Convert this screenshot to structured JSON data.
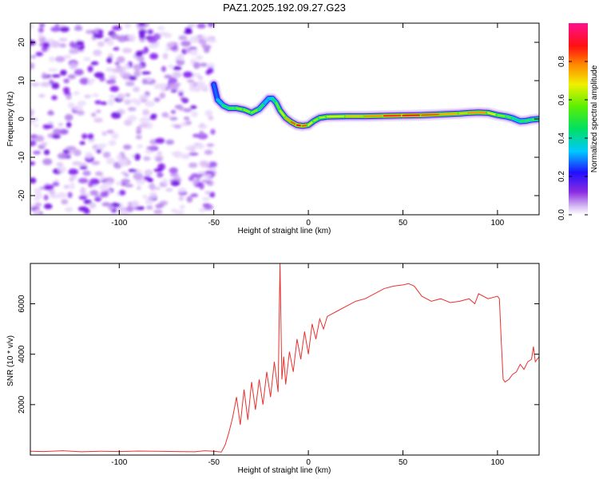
{
  "title": "PAZ1.2025.192.09.27.G23",
  "colors": {
    "trace": "#e8322f",
    "frame": "#000000",
    "colormap": [
      "#e8d6f7",
      "#7b10e8",
      "#1f10ff",
      "#00c8ff",
      "#00e85a",
      "#c8f000",
      "#ffe100",
      "#ff8000",
      "#ff1010",
      "#ff10a0"
    ]
  },
  "chart_data": [
    {
      "type": "heatmap",
      "xlabel": "Height of straight line (km)",
      "ylabel": "Frequency (Hz)",
      "xlim": [
        -147,
        122
      ],
      "ylim": [
        -25,
        25
      ],
      "x_ticks": [
        -100,
        -50,
        0,
        50,
        100
      ],
      "y_ticks": [
        -20,
        -10,
        0,
        10,
        20
      ],
      "grid": false,
      "noise_region_x": [
        -147,
        -50
      ],
      "ridge": {
        "x": [
          -50,
          -48,
          -45,
          -42,
          -38,
          -34,
          -30,
          -26,
          -23,
          -21,
          -19,
          -17,
          -15,
          -12,
          -9,
          -6,
          -3,
          0,
          3,
          6,
          10,
          20,
          30,
          40,
          50,
          60,
          70,
          80,
          85,
          90,
          95,
          100,
          105,
          108,
          110,
          112,
          115,
          118,
          122
        ],
        "y": [
          9,
          5,
          3.5,
          2.8,
          2.8,
          2.4,
          1.6,
          2.6,
          4.2,
          5.3,
          5.3,
          4.2,
          2.2,
          0.3,
          -0.8,
          -1.6,
          -1.8,
          -1.6,
          -0.5,
          0.3,
          0.6,
          0.7,
          0.7,
          0.8,
          0.9,
          1.0,
          1.2,
          1.4,
          1.6,
          1.7,
          1.6,
          1.0,
          0.6,
          0.2,
          -0.2,
          -0.6,
          -0.5,
          -0.2,
          0
        ],
        "amplitude": [
          0.25,
          0.3,
          0.45,
          0.5,
          0.55,
          0.6,
          0.6,
          0.55,
          0.4,
          0.35,
          0.4,
          0.5,
          0.6,
          0.7,
          0.8,
          0.85,
          0.9,
          0.75,
          0.6,
          0.6,
          0.65,
          0.7,
          0.75,
          0.8,
          0.9,
          0.85,
          0.8,
          0.7,
          0.75,
          0.8,
          0.75,
          0.6,
          0.55,
          0.5,
          0.45,
          0.45,
          0.5,
          0.5,
          0.5
        ]
      },
      "colorbar": {
        "label": "Normalized spectral amplitude",
        "range": [
          0,
          1
        ],
        "ticks": [
          0.0,
          0.2,
          0.4,
          0.6,
          0.8
        ]
      }
    },
    {
      "type": "line",
      "xlabel": "Height of straight line (km)",
      "ylabel": "SNR (10 * v/v)",
      "xlim": [
        -147,
        122
      ],
      "ylim": [
        0,
        7600
      ],
      "x_ticks": [
        -100,
        -50,
        0,
        50,
        100
      ],
      "y_ticks": [
        2000,
        4000,
        6000
      ],
      "grid": false,
      "series": [
        {
          "x": [
            -147,
            -140,
            -130,
            -120,
            -110,
            -100,
            -90,
            -80,
            -70,
            -60,
            -55,
            -50,
            -46,
            -44,
            -42,
            -40,
            -38,
            -36,
            -34,
            -32,
            -30,
            -28,
            -26,
            -24,
            -22,
            -20,
            -18,
            -16,
            -15,
            -14,
            -13,
            -12,
            -10,
            -8,
            -6,
            -4,
            -2,
            0,
            2,
            4,
            6,
            8,
            10,
            15,
            20,
            25,
            30,
            35,
            40,
            45,
            50,
            53,
            56,
            60,
            65,
            70,
            75,
            80,
            85,
            88,
            90,
            95,
            100,
            101,
            102,
            103,
            104,
            106,
            108,
            110,
            112,
            114,
            116,
            118,
            119,
            120,
            122
          ],
          "y": [
            150,
            140,
            170,
            130,
            150,
            140,
            160,
            150,
            140,
            130,
            170,
            150,
            120,
            400,
            900,
            1500,
            2300,
            1200,
            2600,
            1400,
            2900,
            1800,
            3000,
            2000,
            3300,
            2300,
            3700,
            2500,
            7600,
            3000,
            3900,
            2800,
            4100,
            3300,
            4600,
            3800,
            4900,
            4000,
            5200,
            4600,
            5400,
            5000,
            5500,
            5700,
            5900,
            6100,
            6200,
            6400,
            6600,
            6700,
            6750,
            6800,
            6700,
            6300,
            6100,
            6200,
            6050,
            6100,
            6200,
            6000,
            6400,
            6200,
            6300,
            6200,
            4500,
            3000,
            2900,
            3000,
            3200,
            3300,
            3600,
            3400,
            3700,
            3800,
            4300,
            3700,
            3900
          ]
        }
      ]
    }
  ]
}
